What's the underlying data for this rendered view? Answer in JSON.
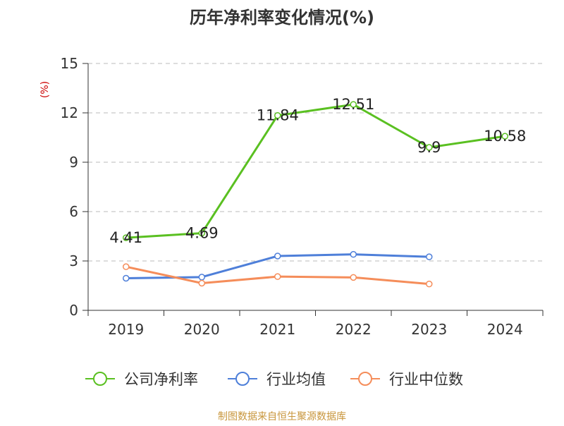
{
  "chart_data": {
    "type": "line",
    "title": "历年净利率变化情况(%)",
    "ylabel": "(%)",
    "xlabel": "",
    "categories": [
      "2019",
      "2020",
      "2021",
      "2022",
      "2023",
      "2024"
    ],
    "ylim": [
      0,
      15
    ],
    "yticks": [
      0,
      3,
      6,
      9,
      12,
      15
    ],
    "grid": true,
    "legend_position": "bottom",
    "series": [
      {
        "name": "公司净利率",
        "color": "#5ac021",
        "values": [
          4.41,
          4.69,
          11.84,
          12.51,
          9.9,
          10.58
        ],
        "data_labels": [
          "4.41",
          "4.69",
          "11.84",
          "12.51",
          "9.9",
          "10.58"
        ]
      },
      {
        "name": "行业均值",
        "color": "#4e7fd9",
        "values": [
          1.95,
          2.02,
          3.3,
          3.4,
          3.25,
          null
        ]
      },
      {
        "name": "行业中位数",
        "color": "#f58d5a",
        "values": [
          2.65,
          1.65,
          2.05,
          2.0,
          1.6,
          null
        ]
      }
    ]
  },
  "colors": {
    "ylabel": "#cc0000",
    "source": "#c8963c",
    "axis": "#333333",
    "grid": "#bbbbbb"
  },
  "source_text": "制图数据来自恒生聚源数据库"
}
